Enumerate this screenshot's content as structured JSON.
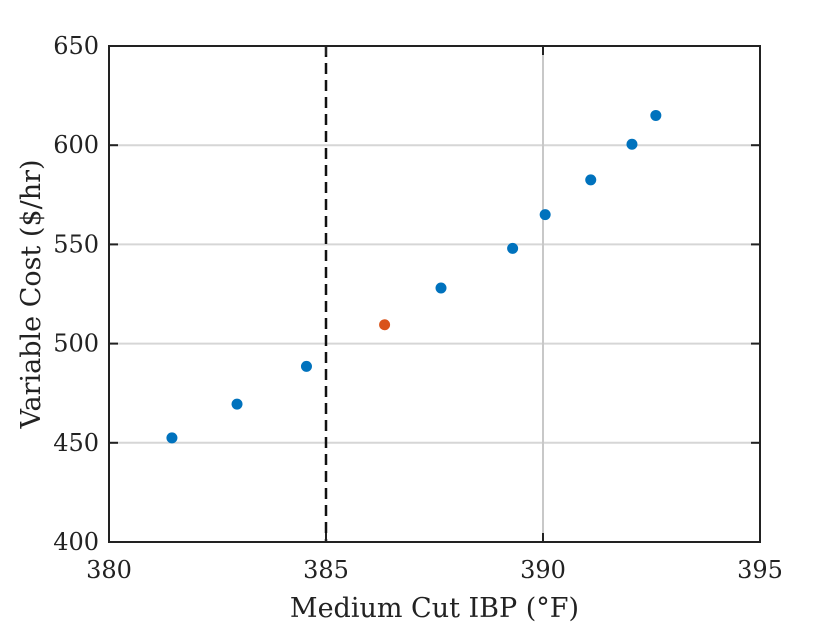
{
  "chart_data": {
    "type": "scatter",
    "title": "",
    "xlabel": "Medium Cut IBP (°F)",
    "ylabel": "Variable Cost ($/hr)",
    "xlim": [
      380,
      395
    ],
    "ylim": [
      400,
      650
    ],
    "xticks": [
      380,
      385,
      390,
      395
    ],
    "yticks": [
      400,
      450,
      500,
      550,
      600,
      650
    ],
    "grid": "horizontal",
    "vertical_reference_lines": [
      {
        "x": 385,
        "style": "dashed",
        "color": "#111111"
      },
      {
        "x": 390,
        "style": "solid",
        "color": "#c8c8c8"
      }
    ],
    "series": [
      {
        "color": "#0072BD",
        "points": [
          {
            "x": 381.45,
            "y": 452.5
          },
          {
            "x": 382.95,
            "y": 469.5
          },
          {
            "x": 384.55,
            "y": 488.5
          },
          {
            "x": 387.65,
            "y": 528.0
          },
          {
            "x": 389.3,
            "y": 548.0
          },
          {
            "x": 390.05,
            "y": 565.0
          },
          {
            "x": 391.1,
            "y": 582.5
          },
          {
            "x": 392.05,
            "y": 600.5
          },
          {
            "x": 392.6,
            "y": 615.0
          }
        ]
      },
      {
        "color": "#D95319",
        "points": [
          {
            "x": 386.35,
            "y": 509.5
          }
        ]
      }
    ]
  }
}
